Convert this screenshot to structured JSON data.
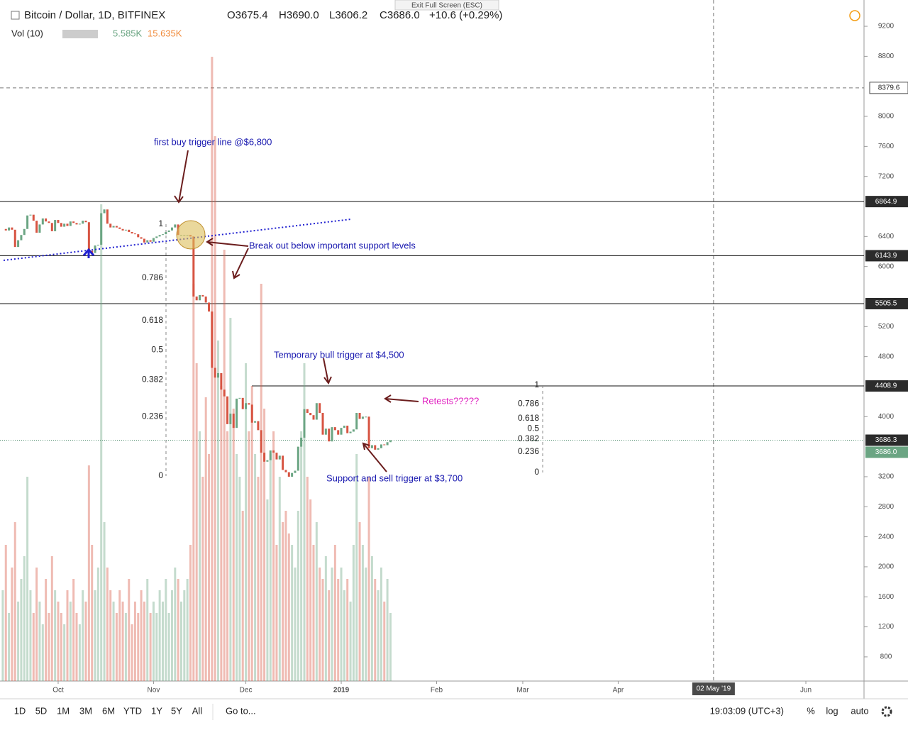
{
  "header": {
    "symbol": "Bitcoin / Dollar, 1D, BITFINEX",
    "ohlc": [
      "O3675.4",
      "H3690.0",
      "L3606.2",
      "C3686.0",
      "+10.6 (+0.29%)"
    ],
    "vol_label": "Vol (10)",
    "vol_values": [
      "5.585K",
      "15.635K"
    ],
    "exit": "Exit Full Screen (ESC)"
  },
  "chart_data": {
    "type": "candlestick",
    "close": [
      6500,
      6480,
      6520,
      6490,
      6260,
      6350,
      6420,
      6500,
      6680,
      6690,
      6610,
      6450,
      6560,
      6640,
      6600,
      6580,
      6470,
      6620,
      6580,
      6530,
      6570,
      6540,
      6600,
      6580,
      6560,
      6570,
      6610,
      6590,
      6210,
      6180,
      6280,
      6290,
      6710,
      6760,
      6570,
      6520,
      6540,
      6520,
      6500,
      6480,
      6490,
      6460,
      6440,
      6430,
      6390,
      6370,
      6320,
      6350,
      6330,
      6380,
      6400,
      6420,
      6430,
      6460,
      6480,
      6520,
      6560,
      6420,
      6420,
      6420,
      6420,
      6400,
      5600,
      5550,
      5620,
      5600,
      5520,
      5400,
      4650,
      4520,
      4580,
      4360,
      4270,
      3900,
      4040,
      3850,
      4240,
      4250,
      4100,
      4180,
      4160,
      3920,
      3940,
      3820,
      3520,
      3400,
      3420,
      3550,
      3520,
      3430,
      3480,
      3290,
      3260,
      3200,
      3250,
      3280,
      3600,
      3720,
      4100,
      4050,
      4020,
      3960,
      4180,
      4050,
      3760,
      3840,
      3670,
      3860,
      3820,
      3760,
      3850,
      3880,
      3780,
      3800,
      3830,
      4050,
      3970,
      4000,
      4000,
      3580,
      3620,
      3560,
      3580,
      3630,
      3620,
      3660,
      3686
    ],
    "volume": [
      8,
      12,
      6,
      10,
      14,
      7,
      9,
      11,
      18,
      8,
      6,
      10,
      7,
      5,
      9,
      6,
      11,
      8,
      7,
      6,
      5,
      8,
      7,
      9,
      6,
      5,
      8,
      7,
      19,
      12,
      8,
      10,
      42,
      14,
      10,
      8,
      7,
      6,
      8,
      7,
      6,
      9,
      5,
      7,
      6,
      8,
      7,
      9,
      6,
      7,
      6,
      8,
      7,
      9,
      6,
      8,
      10,
      9,
      7,
      8,
      9,
      12,
      35,
      28,
      22,
      18,
      25,
      20,
      55,
      48,
      30,
      26,
      38,
      22,
      32,
      24,
      20,
      18,
      15,
      28,
      22,
      26,
      20,
      18,
      35,
      24,
      16,
      20,
      22,
      12,
      18,
      14,
      15,
      13,
      12,
      10,
      15,
      22,
      28,
      18,
      16,
      12,
      14,
      10,
      9,
      11,
      8,
      10,
      12,
      9,
      10,
      8,
      9,
      7,
      12,
      20,
      14,
      12,
      10,
      18,
      11,
      9,
      8,
      10,
      7,
      9,
      6
    ],
    "vlim": [
      0,
      60
    ],
    "xlim": [
      -0.9,
      279.9
    ],
    "xticks": [
      {
        "value": 18,
        "label": "Oct"
      },
      {
        "value": 49,
        "label": "Nov"
      },
      {
        "value": 79,
        "label": "Dec"
      },
      {
        "value": 110,
        "label": "2019"
      },
      {
        "value": 141,
        "label": "Feb"
      },
      {
        "value": 169,
        "label": "Mar"
      },
      {
        "value": 200,
        "label": "Apr"
      },
      {
        "value": 261,
        "label": "Jun"
      }
    ],
    "crosshair_x": {
      "value": 231,
      "label": "02 May '19"
    },
    "ylim": [
      478,
      9550
    ],
    "yticks": [
      9200,
      8800,
      8000,
      7600,
      7200,
      6400,
      6000,
      5200,
      4800,
      4000,
      3200,
      2800,
      2400,
      2000,
      1600,
      1200,
      800
    ],
    "price_lines": [
      6864.9,
      6143.9,
      5505.5,
      4408.9
    ],
    "dashed_line": 8379.6,
    "last_price": 3686.3,
    "close_label": {
      "value": 3686,
      "label": "3686.0"
    },
    "fib_left": [
      1,
      0.786,
      0.618,
      0.5,
      0.382,
      0.236,
      0
    ],
    "fib_right": [
      0,
      0.236,
      0.382,
      0.5,
      0.618,
      0.786,
      1
    ],
    "up_color": "#6ba583",
    "down_color": "#d75442"
  },
  "annotations": [
    "first buy trigger line @$6,800",
    "Break out below important support levels",
    "Temporary bull trigger at $4,500",
    "Retests?????",
    "Support and sell trigger at $3,700"
  ],
  "toolbar": {
    "ranges": [
      "1D",
      "5D",
      "1M",
      "3M",
      "6M",
      "YTD",
      "1Y",
      "5Y",
      "All"
    ],
    "goto": "Go to...",
    "time": "19:03:09 (UTC+3)",
    "options": [
      "%",
      "log",
      "auto"
    ]
  }
}
